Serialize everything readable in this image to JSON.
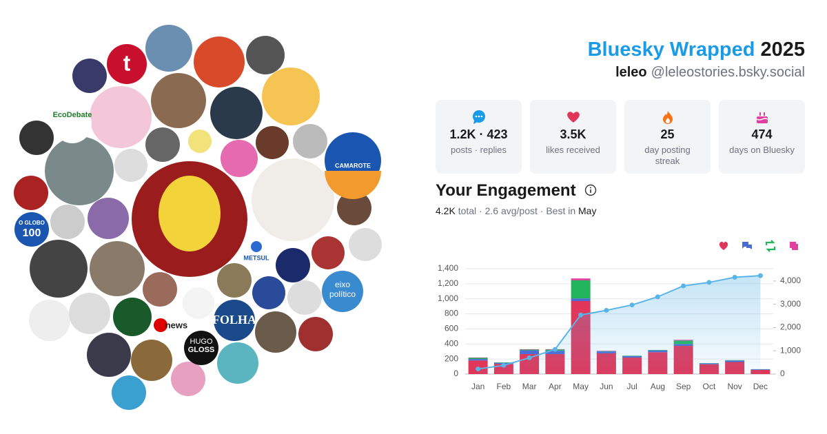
{
  "header": {
    "title": "Bluesky Wrapped",
    "year": "2025",
    "display_name": "leleo",
    "handle": "@leleostories.bsky.social"
  },
  "stats": [
    {
      "value": "1.2K · 423",
      "label": "posts · replies"
    },
    {
      "value": "3.5K",
      "label": "likes received"
    },
    {
      "value": "25",
      "label": "day posting streak"
    },
    {
      "value": "474",
      "label": "days on Bluesky"
    }
  ],
  "engagement": {
    "title": "Your Engagement",
    "total": "4.2K",
    "summary": "total · 2.6 avg/post · Best in",
    "best_month": "May"
  },
  "avatar_labels": [
    "t",
    "EcoDebate",
    "CAMAROTE",
    "O GLOBO",
    "100",
    "METSUL",
    "eixo",
    "político",
    "news",
    "FOLHA",
    "HUGO",
    "GLOSS"
  ],
  "chart_data": {
    "type": "bar",
    "stacked": true,
    "categories": [
      "Jan",
      "Feb",
      "Mar",
      "Apr",
      "May",
      "Jun",
      "Jul",
      "Aug",
      "Sep",
      "Oct",
      "Nov",
      "Dec"
    ],
    "series": [
      {
        "color": "#e0365a",
        "values": [
          180,
          135,
          265,
          265,
          970,
          275,
          220,
          290,
          375,
          130,
          160,
          55
        ]
      },
      {
        "color": "#4a6cd4",
        "values": [
          20,
          15,
          50,
          45,
          35,
          25,
          20,
          25,
          25,
          12,
          20,
          8
        ]
      },
      {
        "color": "#22b45a",
        "values": [
          15,
          5,
          10,
          15,
          240,
          5,
          5,
          5,
          45,
          3,
          5,
          2
        ]
      },
      {
        "color": "#e040a0",
        "values": [
          5,
          0,
          5,
          5,
          25,
          5,
          0,
          0,
          10,
          0,
          0,
          0
        ]
      },
      {
        "type": "line",
        "axis": "y2",
        "color": "#5ab4e6",
        "values": [
          220,
          375,
          700,
          1060,
          2540,
          2740,
          2970,
          3320,
          3790,
          3940,
          4160,
          4230
        ]
      }
    ],
    "ylim": [
      0,
      1400
    ],
    "yticks": [
      0,
      200,
      400,
      600,
      800,
      {
        "value": 1000,
        "label": "1,000"
      },
      {
        "value": 1200,
        "label": "1,200"
      },
      {
        "value": 1400,
        "label": "1,400"
      }
    ],
    "y2lim": [
      0,
      4530
    ],
    "y2ticks": [
      0,
      {
        "value": 1000,
        "label": "1,000"
      },
      {
        "value": 2000,
        "label": "2,000"
      },
      {
        "value": 3000,
        "label": "3,000"
      },
      {
        "value": 4000,
        "label": "4,000"
      }
    ],
    "grid": true
  }
}
